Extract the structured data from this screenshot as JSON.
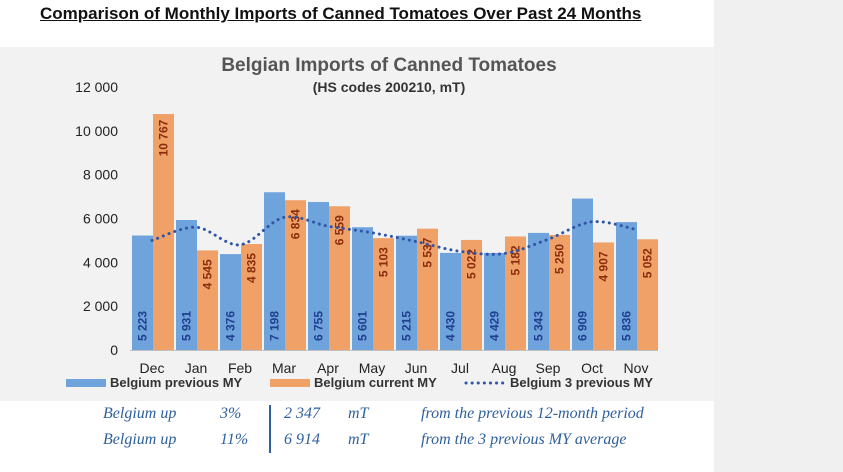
{
  "page_heading": "Comparison of Monthly Imports of Canned Tomatoes Over Past 24 Months",
  "chart_data": {
    "type": "bar",
    "title": "Belgian Imports of Canned Tomatoes",
    "subtitle": "(HS codes 200210, mT)",
    "categories": [
      "Dec",
      "Jan",
      "Feb",
      "Mar",
      "Apr",
      "May",
      "Jun",
      "Jul",
      "Aug",
      "Sep",
      "Oct",
      "Nov"
    ],
    "series": [
      {
        "name": "Belgium previous MY",
        "type": "bar",
        "color": "#6fa3dc",
        "label_color": "#1f3f8f",
        "values": [
          5223,
          5931,
          4376,
          7198,
          6755,
          5601,
          5215,
          4430,
          4429,
          5343,
          6909,
          5836
        ],
        "labels": [
          "5 223",
          "5 931",
          "4 376",
          "7 198",
          "6 755",
          "5 601",
          "5 215",
          "4 430",
          "4 429",
          "5 343",
          "6 909",
          "5 836"
        ]
      },
      {
        "name": "Belgium current MY",
        "type": "bar",
        "color": "#f0a168",
        "label_color": "#8b2d0d",
        "values": [
          10767,
          4545,
          4835,
          6834,
          6559,
          5103,
          5537,
          5022,
          5182,
          5250,
          4907,
          5052
        ],
        "labels": [
          "10 767",
          "4 545",
          "4 835",
          "6 834",
          "6 559",
          "5 103",
          "5 537",
          "5 022",
          "5 182",
          "5 250",
          "4 907",
          "5 052"
        ]
      },
      {
        "name": "Belgium 3 previous MY",
        "type": "line",
        "style": "dotted",
        "color": "#2f55a6",
        "values": [
          5000,
          5600,
          4800,
          6050,
          5650,
          5350,
          4950,
          4500,
          4400,
          5050,
          5850,
          5500
        ]
      }
    ],
    "ylim": [
      0,
      12000
    ],
    "yticks": [
      0,
      2000,
      4000,
      6000,
      8000,
      10000,
      12000
    ],
    "ytick_labels": [
      "0",
      "2 000",
      "4 000",
      "6 000",
      "8 000",
      "10 000",
      "12 000"
    ],
    "grid": false,
    "legend_position": "bottom"
  },
  "summary": {
    "rows": [
      {
        "country": "Belgium up",
        "percent": "3%",
        "amount": "2 347",
        "unit": "mT",
        "note": "from the previous 12-month period"
      },
      {
        "country": "Belgium up",
        "percent": "11%",
        "amount": "6 914",
        "unit": "mT",
        "note": "from the 3 previous MY average"
      }
    ]
  }
}
